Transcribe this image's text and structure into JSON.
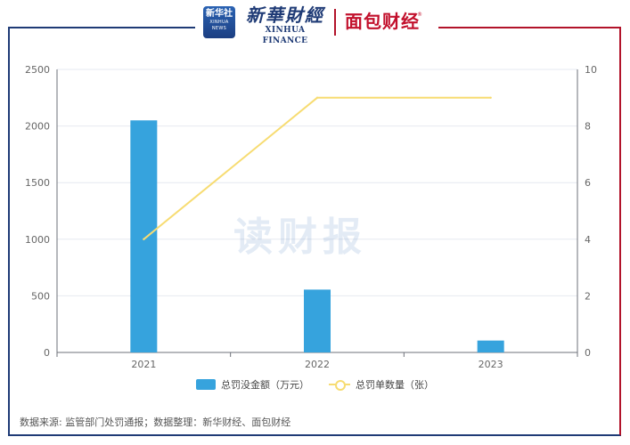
{
  "header": {
    "logo1_line1": "新华社",
    "logo1_line2": "XINHUA NEWS",
    "brand1_cn": "新華財經",
    "brand1_en": "XINHUA FINANCE",
    "brand2": "面包财经",
    "reg_mark": "®"
  },
  "watermark": "读财报",
  "source_note": "数据来源: 监管部门处罚通报；数据整理：新华财经、面包财经",
  "colors": {
    "bar": "#36a3dd",
    "line": "#f7dc72",
    "frame_left": "#1f3b76",
    "frame_right": "#b2132a"
  },
  "chart_data": {
    "type": "bar",
    "categories": [
      "2021",
      "2022",
      "2023"
    ],
    "series": [
      {
        "name": "总罚没金额（万元）",
        "type": "bar",
        "axis": "left",
        "values": [
          2050,
          555,
          105
        ]
      },
      {
        "name": "总罚单数量（张）",
        "type": "line",
        "axis": "right",
        "values": [
          4,
          9,
          9
        ]
      }
    ],
    "y_left": {
      "min": 0,
      "max": 2500,
      "ticks": [
        0,
        500,
        1000,
        1500,
        2000,
        2500
      ]
    },
    "y_right": {
      "min": 0,
      "max": 10,
      "ticks": [
        0,
        2,
        4,
        6,
        8,
        10
      ]
    },
    "grid": true,
    "legend_position": "bottom"
  }
}
